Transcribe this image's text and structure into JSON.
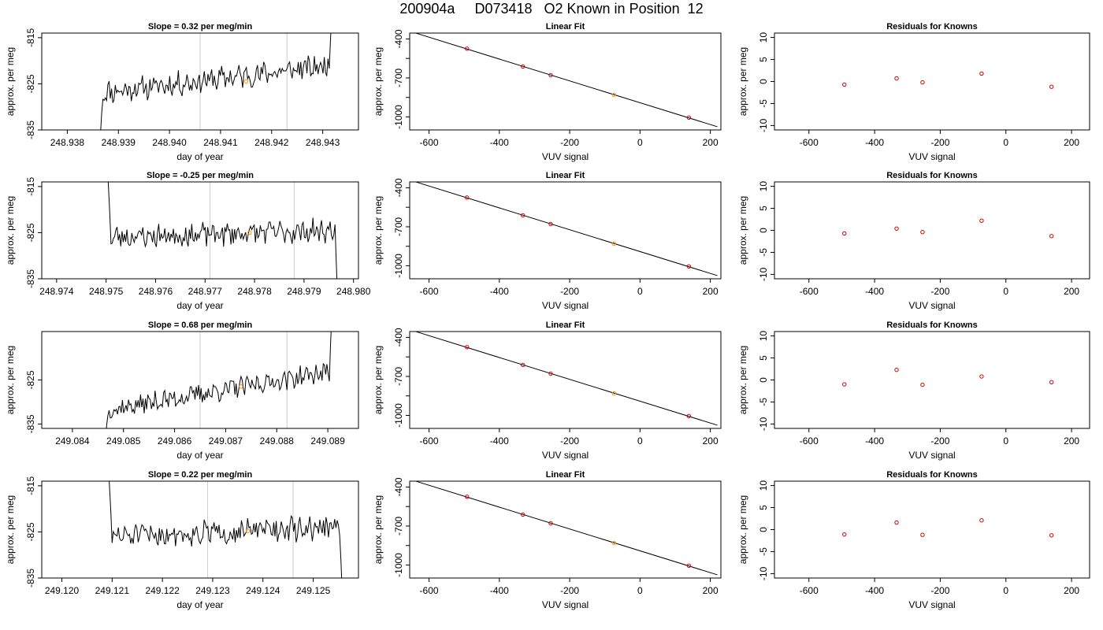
{
  "title": "200904a     D073418   O2 Known in Position  12",
  "rows": [
    {
      "slope": {
        "prefix": "Slope = ",
        "value": "0.32",
        "suffix": "  per meg/min",
        "label": "Slope =  0.32  per meg/min"
      },
      "fit_title": "Linear Fit",
      "resid_title": "Residuals for Knowns"
    },
    {
      "slope": {
        "prefix": "Slope = ",
        "value": "-0.25",
        "suffix": "  per meg/min",
        "label": "Slope =  -0.25  per meg/min"
      },
      "fit_title": "Linear Fit",
      "resid_title": "Residuals for Knowns"
    },
    {
      "slope": {
        "prefix": "Slope = ",
        "value": "0.68",
        "suffix": "  per meg/min",
        "label": "Slope =  0.68  per meg/min"
      },
      "fit_title": "Linear Fit",
      "resid_title": "Residuals for Knowns"
    },
    {
      "slope": {
        "prefix": "Slope = ",
        "value": "0.22",
        "suffix": "  per meg/min",
        "label": "Slope =  0.22  per meg/min"
      },
      "fit_title": "Linear Fit",
      "resid_title": "Residuals for Knowns"
    }
  ],
  "colors": {
    "line": "#000000",
    "point_known": "#cc0000",
    "point_highlight": "#ff8c00",
    "vline": "#cccccc",
    "frame": "#000000"
  },
  "chart_data": [
    {
      "type": "line",
      "panel": "timeseries",
      "row": 0,
      "title": "Slope =  0.32  per meg/min",
      "xlabel": "day of year",
      "ylabel": "approx. per meg",
      "xlim": [
        248.9375,
        248.9437
      ],
      "ylim": [
        -835,
        -814
      ],
      "xticks": [
        248.938,
        248.939,
        248.94,
        248.941,
        248.942,
        248.943
      ],
      "xtick_labels": [
        "248.938",
        "248.939",
        "248.940",
        "248.941",
        "248.942",
        "248.943"
      ],
      "yticks": [
        -835,
        -825,
        -815
      ],
      "ytick_labels": [
        "-835",
        "-825",
        "-815"
      ],
      "vlines": [
        248.9406,
        248.9423
      ],
      "highlight_point": {
        "x": 248.9415,
        "y": -824.5
      },
      "series": [
        {
          "x_start": 248.9386,
          "x_end": 248.9432,
          "start_y": -845,
          "end_y": -805,
          "level_start": -827,
          "level_end": -821,
          "noise": 2.2,
          "seed": 11,
          "lead_pts": 4,
          "tail_pts": 3
        }
      ]
    },
    {
      "type": "line",
      "panel": "timeseries",
      "row": 1,
      "title": "Slope =  -0.25  per meg/min",
      "xlabel": "day of year",
      "ylabel": "approx. per meg",
      "xlim": [
        248.9737,
        248.9801
      ],
      "ylim": [
        -835,
        -814
      ],
      "xticks": [
        248.974,
        248.975,
        248.976,
        248.977,
        248.978,
        248.979,
        248.98
      ],
      "xtick_labels": [
        "248.974",
        "248.975",
        "248.976",
        "248.977",
        "248.978",
        "248.979",
        "248.980"
      ],
      "yticks": [
        -835,
        -825,
        -815
      ],
      "ytick_labels": [
        "-835",
        "-825",
        "-815"
      ],
      "vlines": [
        248.9771,
        248.9788
      ],
      "highlight_point": {
        "x": 248.9779,
        "y": -825.0
      },
      "series": [
        {
          "x_start": 248.975,
          "x_end": 248.9797,
          "start_y": -805,
          "end_y": -845,
          "level_start": -826,
          "level_end": -824.5,
          "noise": 2.2,
          "seed": 23,
          "lead_pts": 4,
          "tail_pts": 3
        }
      ]
    },
    {
      "type": "line",
      "panel": "timeseries",
      "row": 2,
      "title": "Slope =  0.68  per meg/min",
      "xlabel": "day of year",
      "ylabel": "approx. per meg",
      "xlim": [
        249.0834,
        249.0896
      ],
      "ylim": [
        -836,
        -814
      ],
      "xticks": [
        249.084,
        249.085,
        249.086,
        249.087,
        249.088,
        249.089
      ],
      "xtick_labels": [
        "249.084",
        "249.085",
        "249.086",
        "249.087",
        "249.088",
        "249.089"
      ],
      "yticks": [
        -835,
        -825
      ],
      "ytick_labels": [
        "-835",
        "-825"
      ],
      "vlines": [
        249.0865,
        249.0882
      ],
      "highlight_point": {
        "x": 249.0873,
        "y": -826.5
      },
      "series": [
        {
          "x_start": 249.0846,
          "x_end": 249.0891,
          "start_y": -845,
          "end_y": -805,
          "level_start": -832,
          "level_end": -823,
          "noise": 2.0,
          "seed": 37,
          "lead_pts": 4,
          "tail_pts": 3
        }
      ]
    },
    {
      "type": "line",
      "panel": "timeseries",
      "row": 3,
      "title": "Slope =  0.22  per meg/min",
      "xlabel": "day of year",
      "ylabel": "approx. per meg",
      "xlim": [
        249.1196,
        249.1259
      ],
      "ylim": [
        -835,
        -814
      ],
      "xticks": [
        249.12,
        249.121,
        249.122,
        249.123,
        249.124,
        249.125
      ],
      "xtick_labels": [
        "249.120",
        "249.121",
        "249.122",
        "249.123",
        "249.124",
        "249.125"
      ],
      "yticks": [
        -835,
        -825,
        -815
      ],
      "ytick_labels": [
        "-835",
        "-825",
        "-815"
      ],
      "vlines": [
        249.1229,
        249.1246
      ],
      "highlight_point": {
        "x": 249.1237,
        "y": -824.8
      },
      "series": [
        {
          "x_start": 249.1209,
          "x_end": 249.1256,
          "start_y": -805,
          "end_y": -845,
          "level_start": -826,
          "level_end": -824,
          "noise": 2.2,
          "seed": 51,
          "lead_pts": 4,
          "tail_pts": 3
        }
      ]
    },
    {
      "type": "scatter",
      "panel": "linear_fit",
      "row": 0,
      "title": "Linear Fit",
      "xlabel": "VUV signal",
      "ylabel": "approx. per meg",
      "xlim": [
        -655,
        230
      ],
      "ylim": [
        -1100,
        -355
      ],
      "xticks": [
        -600,
        -400,
        -200,
        0,
        200
      ],
      "xtick_labels": [
        "-600",
        "-400",
        "-200",
        "0",
        "200"
      ],
      "yticks": [
        -400,
        -700,
        -1000
      ],
      "ytick_labels": [
        "-400",
        "-700",
        "-1000"
      ],
      "yticks_minor": [
        -550,
        -850
      ],
      "fit_line": {
        "slope": 1.425,
        "intercept": -776
      },
      "points": [
        {
          "x": -492,
          "y": -475,
          "kind": "known"
        },
        {
          "x": -333,
          "y": -612,
          "kind": "known"
        },
        {
          "x": -254,
          "y": -679,
          "kind": "known"
        },
        {
          "x": -74,
          "y": -831,
          "kind": "highlight"
        },
        {
          "x": 139,
          "y": -1005,
          "kind": "known"
        }
      ]
    },
    {
      "type": "scatter",
      "panel": "linear_fit",
      "row": 1,
      "title": "Linear Fit",
      "xlabel": "VUV signal",
      "ylabel": "approx. per meg",
      "xlim": [
        -655,
        230
      ],
      "ylim": [
        -1100,
        -355
      ],
      "xticks": [
        -600,
        -400,
        -200,
        0,
        200
      ],
      "xtick_labels": [
        "-600",
        "-400",
        "-200",
        "0",
        "200"
      ],
      "yticks": [
        -400,
        -700,
        -1000
      ],
      "ytick_labels": [
        "-400",
        "-700",
        "-1000"
      ],
      "yticks_minor": [
        -550,
        -850
      ],
      "fit_line": {
        "slope": 1.425,
        "intercept": -776
      },
      "points": [
        {
          "x": -492,
          "y": -475,
          "kind": "known"
        },
        {
          "x": -333,
          "y": -612,
          "kind": "known"
        },
        {
          "x": -254,
          "y": -679,
          "kind": "known"
        },
        {
          "x": -74,
          "y": -831,
          "kind": "highlight"
        },
        {
          "x": 139,
          "y": -1005,
          "kind": "known"
        }
      ]
    },
    {
      "type": "scatter",
      "panel": "linear_fit",
      "row": 2,
      "title": "Linear Fit",
      "xlabel": "VUV signal",
      "ylabel": "approx. per meg",
      "xlim": [
        -655,
        230
      ],
      "ylim": [
        -1100,
        -355
      ],
      "xticks": [
        -600,
        -400,
        -200,
        0,
        200
      ],
      "xtick_labels": [
        "-600",
        "-400",
        "-200",
        "0",
        "200"
      ],
      "yticks": [
        -400,
        -700,
        -1000
      ],
      "ytick_labels": [
        "-400",
        "-700",
        "-1000"
      ],
      "yticks_minor": [
        -550,
        -850
      ],
      "fit_line": {
        "slope": 1.425,
        "intercept": -776
      },
      "points": [
        {
          "x": -492,
          "y": -475,
          "kind": "known"
        },
        {
          "x": -333,
          "y": -612,
          "kind": "known"
        },
        {
          "x": -254,
          "y": -679,
          "kind": "known"
        },
        {
          "x": -74,
          "y": -831,
          "kind": "highlight"
        },
        {
          "x": 139,
          "y": -1005,
          "kind": "known"
        }
      ]
    },
    {
      "type": "scatter",
      "panel": "linear_fit",
      "row": 3,
      "title": "Linear Fit",
      "xlabel": "VUV signal",
      "ylabel": "approx. per meg",
      "xlim": [
        -655,
        230
      ],
      "ylim": [
        -1100,
        -355
      ],
      "xticks": [
        -600,
        -400,
        -200,
        0,
        200
      ],
      "xtick_labels": [
        "-600",
        "-400",
        "-200",
        "0",
        "200"
      ],
      "yticks": [
        -400,
        -700,
        -1000
      ],
      "ytick_labels": [
        "-400",
        "-700",
        "-1000"
      ],
      "yticks_minor": [
        -550,
        -850
      ],
      "fit_line": {
        "slope": 1.425,
        "intercept": -776
      },
      "points": [
        {
          "x": -492,
          "y": -475,
          "kind": "known"
        },
        {
          "x": -333,
          "y": -612,
          "kind": "known"
        },
        {
          "x": -254,
          "y": -679,
          "kind": "known"
        },
        {
          "x": -74,
          "y": -831,
          "kind": "highlight"
        },
        {
          "x": 139,
          "y": -1005,
          "kind": "known"
        }
      ]
    },
    {
      "type": "scatter",
      "panel": "residuals",
      "row": 0,
      "title": "Residuals for Knowns",
      "xlabel": "VUV signal",
      "ylabel": "approx. per meg",
      "xlim": [
        -705,
        255
      ],
      "ylim": [
        -11,
        11
      ],
      "xticks": [
        -600,
        -400,
        -200,
        0,
        200
      ],
      "xtick_labels": [
        "-600",
        "-400",
        "-200",
        "0",
        "200"
      ],
      "yticks": [
        -10,
        -5,
        0,
        5,
        10
      ],
      "ytick_labels": [
        "-10",
        "-5",
        "0",
        "5",
        "10"
      ],
      "points": [
        {
          "x": -492,
          "y": -0.7
        },
        {
          "x": -333,
          "y": 0.7
        },
        {
          "x": -254,
          "y": -0.2
        },
        {
          "x": -74,
          "y": 1.8
        },
        {
          "x": 139,
          "y": -1.2
        }
      ]
    },
    {
      "type": "scatter",
      "panel": "residuals",
      "row": 1,
      "title": "Residuals for Knowns",
      "xlabel": "VUV signal",
      "ylabel": "approx. per meg",
      "xlim": [
        -705,
        255
      ],
      "ylim": [
        -11,
        11
      ],
      "xticks": [
        -600,
        -400,
        -200,
        0,
        200
      ],
      "xtick_labels": [
        "-600",
        "-400",
        "-200",
        "0",
        "200"
      ],
      "yticks": [
        -10,
        -5,
        0,
        5,
        10
      ],
      "ytick_labels": [
        "-10",
        "-5",
        "0",
        "5",
        "10"
      ],
      "points": [
        {
          "x": -492,
          "y": -0.7
        },
        {
          "x": -333,
          "y": 0.4
        },
        {
          "x": -254,
          "y": -0.4
        },
        {
          "x": -74,
          "y": 2.2
        },
        {
          "x": 139,
          "y": -1.3
        }
      ]
    },
    {
      "type": "scatter",
      "panel": "residuals",
      "row": 2,
      "title": "Residuals for Knowns",
      "xlabel": "VUV signal",
      "ylabel": "approx. per meg",
      "xlim": [
        -705,
        255
      ],
      "ylim": [
        -11,
        11
      ],
      "xticks": [
        -600,
        -400,
        -200,
        0,
        200
      ],
      "xtick_labels": [
        "-600",
        "-400",
        "-200",
        "0",
        "200"
      ],
      "yticks": [
        -10,
        -5,
        0,
        5,
        10
      ],
      "ytick_labels": [
        "-10",
        "-5",
        "0",
        "5",
        "10"
      ],
      "points": [
        {
          "x": -492,
          "y": -1.0
        },
        {
          "x": -333,
          "y": 2.3
        },
        {
          "x": -254,
          "y": -1.1
        },
        {
          "x": -74,
          "y": 0.8
        },
        {
          "x": 139,
          "y": -0.5
        }
      ]
    },
    {
      "type": "scatter",
      "panel": "residuals",
      "row": 3,
      "title": "Residuals for Knowns",
      "xlabel": "VUV signal",
      "ylabel": "approx. per meg",
      "xlim": [
        -705,
        255
      ],
      "ylim": [
        -11,
        11
      ],
      "xticks": [
        -600,
        -400,
        -200,
        0,
        200
      ],
      "xtick_labels": [
        "-600",
        "-400",
        "-200",
        "0",
        "200"
      ],
      "yticks": [
        -10,
        -5,
        0,
        5,
        10
      ],
      "ytick_labels": [
        "-10",
        "-5",
        "0",
        "5",
        "10"
      ],
      "points": [
        {
          "x": -492,
          "y": -1.1
        },
        {
          "x": -333,
          "y": 1.6
        },
        {
          "x": -254,
          "y": -1.2
        },
        {
          "x": -74,
          "y": 2.1
        },
        {
          "x": 139,
          "y": -1.3
        }
      ]
    }
  ]
}
